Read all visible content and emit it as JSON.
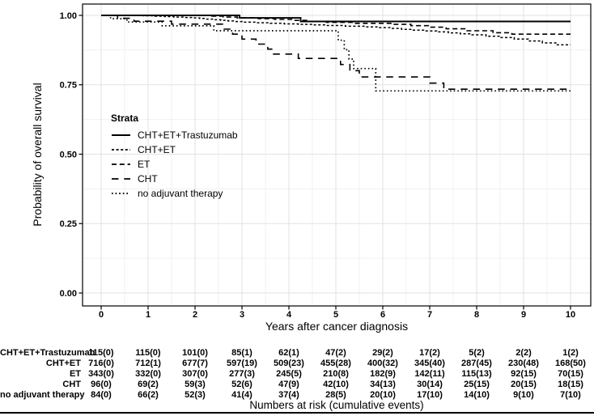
{
  "figure": {
    "legend": {
      "title": "Strata",
      "position": "inside-left-middle"
    },
    "colors": {
      "line": "#000000",
      "grid_major": "#e2e2e2",
      "grid_minor": "#f1f1f1",
      "background": "#ffffff"
    }
  },
  "chart_data": {
    "type": "line",
    "subtype": "kaplan-meier-step",
    "title": "",
    "xlabel": "Years after cancer diagnosis",
    "ylabel": "Probability of overall survival",
    "xlim": [
      0,
      10
    ],
    "ylim": [
      0.0,
      1.0
    ],
    "x_ticks": [
      "0",
      "1",
      "2",
      "3",
      "4",
      "5",
      "6",
      "7",
      "8",
      "9",
      "10"
    ],
    "x_tick_values": [
      0,
      1,
      2,
      3,
      4,
      5,
      6,
      7,
      8,
      9,
      10
    ],
    "y_ticks": [
      "0.00",
      "0.25",
      "0.50",
      "0.75",
      "1.00"
    ],
    "y_tick_values": [
      0,
      0.25,
      0.5,
      0.75,
      1.0
    ],
    "grid": "on",
    "legend_title": "Strata",
    "series": [
      {
        "name": "CHT+ET+Trastuzumab",
        "linestyle": "solid",
        "dasharray": "",
        "width": 1.9,
        "start": [
          0,
          1.0
        ],
        "end_x": 10,
        "steps": [
          [
            2.95,
            0.991
          ],
          [
            4.25,
            0.978
          ]
        ]
      },
      {
        "name": "CHT+ET",
        "linestyle": "short-dash",
        "dasharray": "3,2.6",
        "width": 1.5,
        "start": [
          0,
          1.0
        ],
        "end_x": 10,
        "steps": [
          [
            0.9,
            0.9986
          ],
          [
            1.15,
            0.997
          ],
          [
            1.35,
            0.9955
          ],
          [
            1.55,
            0.994
          ],
          [
            1.75,
            0.9925
          ],
          [
            1.95,
            0.991
          ],
          [
            2.1,
            0.9888
          ],
          [
            2.25,
            0.9866
          ],
          [
            2.4,
            0.9844
          ],
          [
            2.55,
            0.9822
          ],
          [
            2.7,
            0.98
          ],
          [
            2.85,
            0.9778
          ],
          [
            3.0,
            0.9756
          ],
          [
            3.3,
            0.9735
          ],
          [
            3.6,
            0.9715
          ],
          [
            3.9,
            0.9695
          ],
          [
            4.2,
            0.9675
          ],
          [
            4.5,
            0.9655
          ],
          [
            4.8,
            0.9635
          ],
          [
            5.2,
            0.961
          ],
          [
            5.6,
            0.9585
          ],
          [
            5.9,
            0.956
          ],
          [
            6.15,
            0.953
          ],
          [
            6.4,
            0.95
          ],
          [
            6.65,
            0.947
          ],
          [
            6.9,
            0.944
          ],
          [
            7.15,
            0.9405
          ],
          [
            7.4,
            0.937
          ],
          [
            7.65,
            0.9335
          ],
          [
            7.9,
            0.93
          ],
          [
            8.2,
            0.925
          ],
          [
            8.5,
            0.92
          ],
          [
            8.8,
            0.915
          ],
          [
            9.1,
            0.908
          ],
          [
            9.4,
            0.901
          ],
          [
            9.7,
            0.894
          ]
        ]
      },
      {
        "name": "ET",
        "linestyle": "medium-dash",
        "dasharray": "6,3.8",
        "width": 1.6,
        "start": [
          0,
          1.0
        ],
        "end_x": 10,
        "steps": [
          [
            2.3,
            0.997
          ],
          [
            2.6,
            0.994
          ],
          [
            2.9,
            0.991
          ],
          [
            3.35,
            0.988
          ],
          [
            3.7,
            0.9855
          ],
          [
            4.1,
            0.982
          ],
          [
            4.45,
            0.9785
          ],
          [
            4.8,
            0.975
          ],
          [
            5.4,
            0.9715
          ],
          [
            6.2,
            0.9675
          ],
          [
            6.6,
            0.963
          ],
          [
            7.0,
            0.9575
          ],
          [
            7.35,
            0.9515
          ],
          [
            7.75,
            0.9445
          ],
          [
            8.35,
            0.9375
          ],
          [
            8.75,
            0.9325
          ]
        ]
      },
      {
        "name": "CHT",
        "linestyle": "long-dash",
        "dasharray": "8.5,6.8",
        "width": 1.6,
        "start": [
          0,
          1.0
        ],
        "end_x": 10,
        "steps": [
          [
            0.35,
            0.9895
          ],
          [
            0.7,
            0.979
          ],
          [
            1.5,
            0.9685
          ],
          [
            2.6,
            0.9505
          ],
          [
            2.8,
            0.9325
          ],
          [
            3.0,
            0.9145
          ],
          [
            3.3,
            0.8965
          ],
          [
            3.55,
            0.8785
          ],
          [
            3.65,
            0.8605
          ],
          [
            4.2,
            0.845
          ],
          [
            5.1,
            0.823
          ],
          [
            5.3,
            0.801
          ],
          [
            5.5,
            0.778
          ],
          [
            7.0,
            0.756
          ],
          [
            7.3,
            0.734
          ]
        ]
      },
      {
        "name": "no adjuvant therapy",
        "linestyle": "dotted",
        "dasharray": "1.6,3",
        "width": 1.7,
        "start": [
          0,
          1.0
        ],
        "end_x": 10,
        "steps": [
          [
            0.2,
            0.988
          ],
          [
            0.55,
            0.976
          ],
          [
            1.3,
            0.9625
          ],
          [
            2.4,
            0.9445
          ],
          [
            5.05,
            0.9105
          ],
          [
            5.18,
            0.8765
          ],
          [
            5.28,
            0.8425
          ],
          [
            5.38,
            0.8085
          ],
          [
            5.85,
            0.728
          ]
        ]
      }
    ]
  },
  "risk_table": {
    "caption": "Numbers at risk (cumulative events)",
    "time_points": [
      0,
      1,
      2,
      3,
      4,
      5,
      6,
      7,
      8,
      9,
      10
    ],
    "rows": [
      {
        "label": "CHT+ET+Trastuzumab",
        "values": [
          "115(0)",
          "115(0)",
          "101(0)",
          "85(1)",
          "62(1)",
          "47(2)",
          "29(2)",
          "17(2)",
          "5(2)",
          "2(2)",
          "1(2)"
        ]
      },
      {
        "label": "CHT+ET",
        "values": [
          "716(0)",
          "712(1)",
          "677(7)",
          "597(19)",
          "509(23)",
          "455(28)",
          "400(32)",
          "345(40)",
          "287(45)",
          "230(48)",
          "168(50)"
        ]
      },
      {
        "label": "ET",
        "values": [
          "343(0)",
          "332(0)",
          "307(0)",
          "277(3)",
          "245(5)",
          "210(8)",
          "182(9)",
          "142(11)",
          "115(13)",
          "92(15)",
          "70(15)"
        ]
      },
      {
        "label": "CHT",
        "values": [
          "96(0)",
          "69(2)",
          "59(3)",
          "52(6)",
          "47(9)",
          "42(10)",
          "34(13)",
          "30(14)",
          "25(15)",
          "20(15)",
          "18(15)"
        ]
      },
      {
        "label": "no adjuvant therapy",
        "values": [
          "84(0)",
          "66(2)",
          "52(3)",
          "41(4)",
          "37(4)",
          "28(5)",
          "20(10)",
          "17(10)",
          "14(10)",
          "9(10)",
          "7(10)"
        ]
      }
    ]
  }
}
